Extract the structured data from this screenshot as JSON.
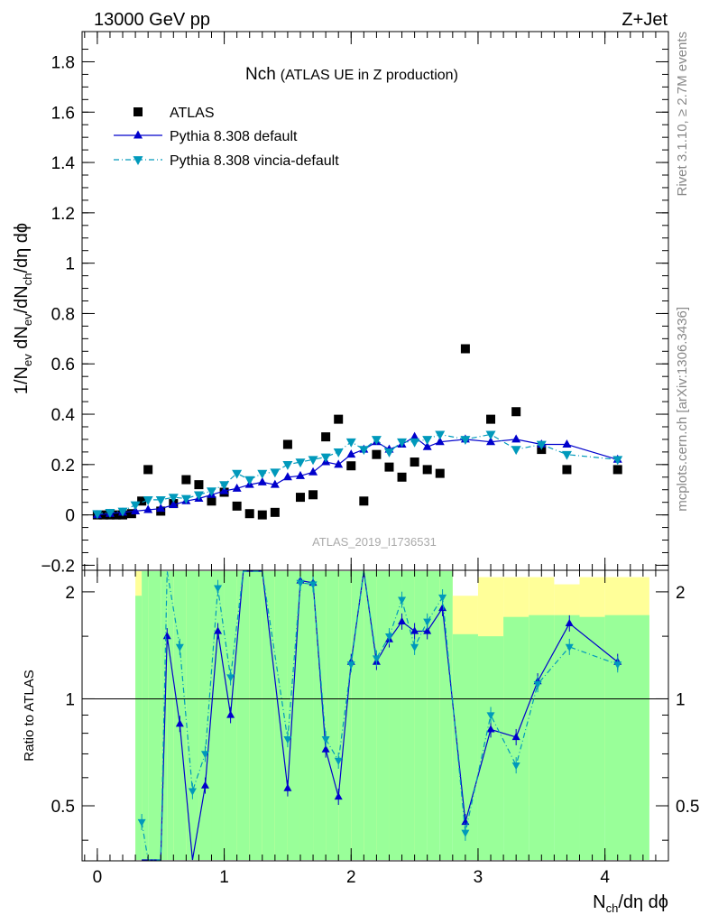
{
  "header": {
    "energy_label": "13000 GeV pp",
    "process_label": "Z+Jet"
  },
  "side_labels": {
    "rivet": "Rivet 3.1.10, ≥ 2.7M events",
    "source": "mcplots.cern.ch [arXiv:1306.3436]"
  },
  "chart_data": {
    "type": "scatter",
    "title": "Nch",
    "subtitle": "(ATLAS UE in Z production)",
    "analysis_id": "ATLAS_2019_I1736531",
    "x_label_parts": {
      "a": "N",
      "a_sub": "ch",
      "b": "/dη dϕ"
    },
    "y_label_parts": {
      "a": "1/N",
      "a_sub": "ev",
      "b": " dN",
      "b_sub": "ev",
      "c": "/dN",
      "c_sub": "ch",
      "d": "/dη dϕ"
    },
    "ratio_ylabel": "Ratio to ATLAS",
    "xlim": [
      -0.12,
      4.5
    ],
    "ylim": [
      -0.22,
      1.92
    ],
    "ratio_ylim": [
      0.35,
      2.3
    ],
    "x_ticks": [
      0,
      1,
      2,
      3,
      4
    ],
    "x_tick_labels": [
      "0",
      "1",
      "2",
      "3",
      "4"
    ],
    "y_ticks": [
      -0.2,
      0,
      0.2,
      0.4,
      0.6,
      0.8,
      1,
      1.2,
      1.4,
      1.6,
      1.8
    ],
    "y_tick_labels": [
      "−0.2",
      "0",
      "0.2",
      "0.4",
      "0.6",
      "0.8",
      "1",
      "1.2",
      "1.4",
      "1.6",
      "1.8"
    ],
    "ratio_ticks": [
      0.5,
      1,
      2
    ],
    "ratio_tick_labels": [
      "0.5",
      "1",
      "2"
    ],
    "legend_position": "top-left",
    "series": [
      {
        "name": "ATLAS",
        "color": "#000000",
        "x": [
          0.0,
          0.05,
          0.1,
          0.15,
          0.2,
          0.27,
          0.35,
          0.4,
          0.5,
          0.6,
          0.7,
          0.8,
          0.9,
          1.0,
          1.1,
          1.2,
          1.3,
          1.4,
          1.5,
          1.6,
          1.7,
          1.8,
          1.9,
          2.0,
          2.1,
          2.2,
          2.3,
          2.4,
          2.5,
          2.6,
          2.7,
          2.9,
          3.1,
          3.3,
          3.5,
          3.7,
          4.1
        ],
        "y": [
          0.0,
          0.0,
          0.0,
          0.0,
          0.0,
          0.005,
          0.055,
          0.18,
          0.015,
          0.045,
          0.14,
          0.12,
          0.055,
          0.09,
          0.035,
          0.005,
          0.0,
          0.01,
          0.28,
          0.07,
          0.08,
          0.31,
          0.38,
          0.195,
          0.055,
          0.24,
          0.19,
          0.15,
          0.21,
          0.18,
          0.165,
          0.66,
          0.38,
          0.41,
          0.26,
          0.18,
          0.18
        ]
      },
      {
        "name": "Pythia 8.308 default",
        "color": "#0000cc",
        "x": [
          0.0,
          0.1,
          0.2,
          0.3,
          0.4,
          0.5,
          0.6,
          0.7,
          0.8,
          0.9,
          1.0,
          1.1,
          1.2,
          1.3,
          1.4,
          1.5,
          1.6,
          1.7,
          1.8,
          1.9,
          2.0,
          2.1,
          2.2,
          2.3,
          2.4,
          2.5,
          2.6,
          2.7,
          2.9,
          3.1,
          3.3,
          3.5,
          3.7,
          4.1
        ],
        "y": [
          0.0,
          0.005,
          0.01,
          0.015,
          0.02,
          0.025,
          0.04,
          0.055,
          0.065,
          0.08,
          0.095,
          0.105,
          0.12,
          0.13,
          0.12,
          0.15,
          0.155,
          0.17,
          0.21,
          0.2,
          0.24,
          0.26,
          0.29,
          0.26,
          0.28,
          0.31,
          0.27,
          0.29,
          0.3,
          0.29,
          0.3,
          0.28,
          0.28,
          0.22
        ],
        "ratio_x": [
          0.35,
          0.4,
          0.5,
          0.55,
          0.65,
          0.75,
          0.85,
          0.95,
          1.05,
          1.15,
          1.3,
          1.5,
          1.6,
          1.7,
          1.8,
          1.9,
          2.0,
          2.1,
          2.2,
          2.3,
          2.4,
          2.5,
          2.6,
          2.72,
          2.9,
          3.1,
          3.3,
          3.47,
          3.72,
          4.1
        ],
        "ratio_y": [
          0.25,
          0.3,
          0.2,
          1.5,
          0.85,
          0.35,
          0.57,
          1.55,
          0.9,
          2.5,
          2.5,
          0.56,
          2.15,
          2.12,
          0.72,
          0.53,
          1.27,
          2.5,
          1.27,
          1.47,
          1.65,
          1.55,
          1.55,
          1.8,
          0.45,
          0.82,
          0.78,
          1.12,
          1.63,
          1.27
        ]
      },
      {
        "name": "Pythia 8.308 vincia-default",
        "color": "#0099bb",
        "x": [
          0.0,
          0.1,
          0.2,
          0.3,
          0.4,
          0.5,
          0.6,
          0.7,
          0.8,
          0.9,
          1.0,
          1.1,
          1.2,
          1.3,
          1.4,
          1.5,
          1.6,
          1.7,
          1.8,
          1.9,
          2.0,
          2.1,
          2.2,
          2.3,
          2.4,
          2.5,
          2.6,
          2.7,
          2.9,
          3.1,
          3.3,
          3.5,
          3.7,
          4.1
        ],
        "y": [
          0.005,
          0.01,
          0.015,
          0.04,
          0.06,
          0.06,
          0.07,
          0.065,
          0.08,
          0.095,
          0.12,
          0.165,
          0.14,
          0.165,
          0.17,
          0.2,
          0.21,
          0.22,
          0.23,
          0.25,
          0.29,
          0.26,
          0.3,
          0.25,
          0.29,
          0.29,
          0.3,
          0.32,
          0.3,
          0.32,
          0.26,
          0.28,
          0.24,
          0.22
        ],
        "ratio_x": [
          0.35,
          0.4,
          0.5,
          0.55,
          0.65,
          0.75,
          0.85,
          0.95,
          1.05,
          1.15,
          1.3,
          1.5,
          1.6,
          1.7,
          1.8,
          1.9,
          2.0,
          2.1,
          2.2,
          2.3,
          2.4,
          2.5,
          2.6,
          2.72,
          2.9,
          3.1,
          3.3,
          3.47,
          3.72,
          4.1
        ],
        "ratio_y": [
          0.45,
          0.3,
          0.25,
          2.4,
          1.4,
          0.55,
          0.7,
          2.05,
          1.15,
          2.5,
          2.5,
          0.77,
          2.12,
          2.1,
          0.77,
          0.67,
          1.25,
          2.5,
          1.3,
          1.5,
          1.9,
          1.4,
          1.65,
          1.93,
          0.42,
          0.9,
          0.65,
          1.1,
          1.4,
          1.25
        ]
      }
    ],
    "bands": {
      "x_edges": [
        0.3,
        0.35,
        0.4,
        0.5,
        0.55,
        0.6,
        0.7,
        0.8,
        0.9,
        1.0,
        1.1,
        1.2,
        1.3,
        1.4,
        1.5,
        1.6,
        1.7,
        1.8,
        1.9,
        2.0,
        2.1,
        2.2,
        2.3,
        2.4,
        2.5,
        2.6,
        2.7,
        2.8,
        3.0,
        3.2,
        3.4,
        3.6,
        3.8,
        4.0,
        4.35
      ],
      "green_lo": [
        0.3,
        0.3,
        0.3,
        0.3,
        0.3,
        0.3,
        0.3,
        0.3,
        0.3,
        0.3,
        0.3,
        0.3,
        0.3,
        0.3,
        0.3,
        0.3,
        0.3,
        0.3,
        0.3,
        0.3,
        0.3,
        0.3,
        0.3,
        0.3,
        0.3,
        0.3,
        0.3,
        0.3,
        0.3,
        0.3,
        0.3,
        0.3,
        0.3,
        0.3
      ],
      "green_hi": [
        1.95,
        2.3,
        2.3,
        2.3,
        2.3,
        2.3,
        2.3,
        2.3,
        2.3,
        2.3,
        2.3,
        2.3,
        2.3,
        2.3,
        2.3,
        2.3,
        2.3,
        2.3,
        2.3,
        2.3,
        2.3,
        2.3,
        2.3,
        2.3,
        2.3,
        2.3,
        2.3,
        1.52,
        1.5,
        1.7,
        1.72,
        1.72,
        1.7,
        1.72
      ],
      "yellow_lo": [
        0.3,
        0.3,
        0.53,
        0.3,
        0.3,
        0.3,
        0.3,
        0.3,
        0.3,
        0.3,
        0.3,
        0.3,
        0.3,
        0.3,
        0.3,
        0.3,
        0.3,
        0.3,
        0.3,
        0.3,
        0.3,
        0.3,
        0.3,
        0.3,
        0.3,
        0.53,
        0.53,
        0.65,
        0.53,
        0.53,
        0.5,
        0.5,
        0.5,
        0.5
      ],
      "yellow_hi": [
        2.3,
        2.3,
        2.3,
        2.3,
        2.3,
        2.3,
        2.3,
        2.3,
        2.3,
        2.3,
        2.3,
        2.3,
        2.3,
        2.3,
        2.3,
        2.3,
        2.3,
        2.3,
        2.3,
        2.3,
        2.3,
        2.3,
        2.3,
        2.3,
        2.3,
        2.3,
        2.3,
        1.95,
        2.2,
        2.2,
        2.2,
        2.1,
        2.2,
        2.2
      ]
    }
  }
}
